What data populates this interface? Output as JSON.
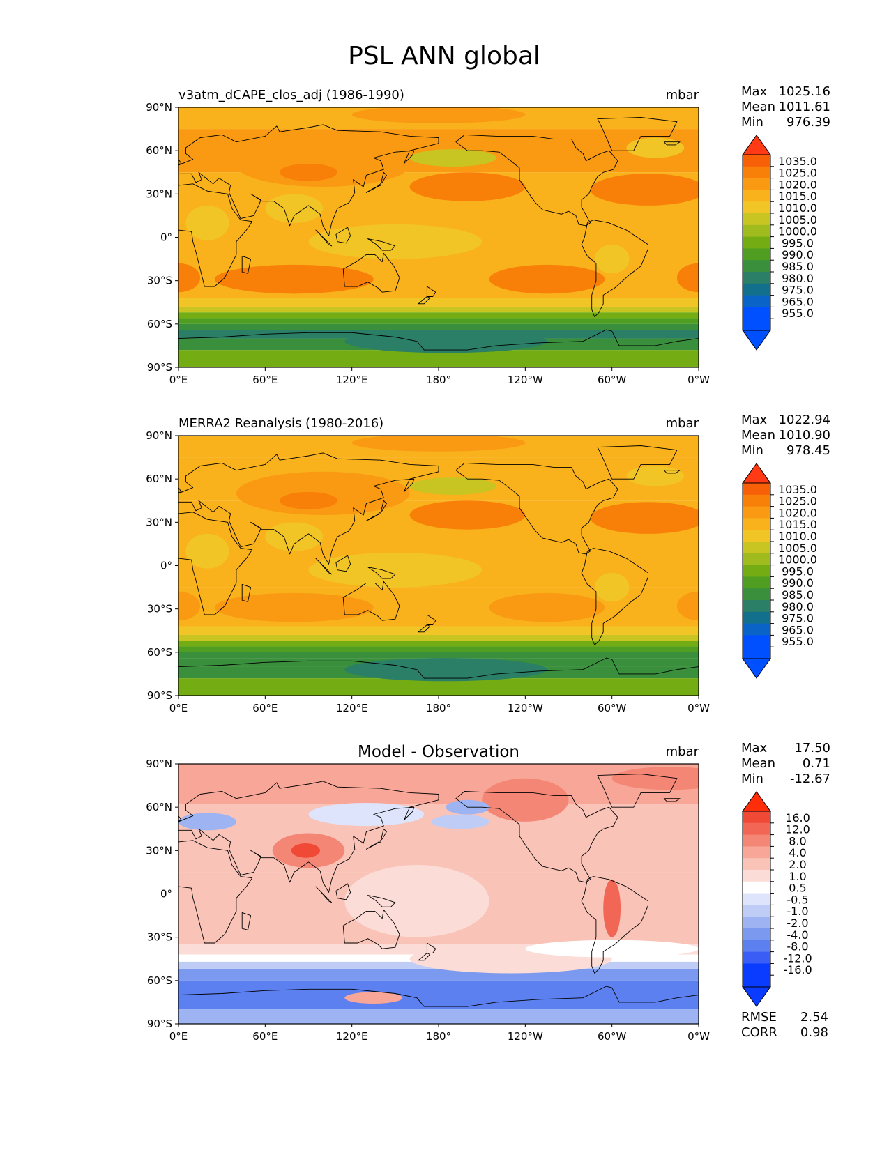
{
  "figure": {
    "title": "PSL ANN global"
  },
  "chart_data": [
    {
      "type": "heatmap",
      "panel": "test",
      "title": "v3atm_dCAPE_clos_adj (1986-1990)",
      "units": "mbar",
      "stats": [
        {
          "label": "Max",
          "value": "1025.16"
        },
        {
          "label": "Mean",
          "value": "1011.61"
        },
        {
          "label": "Min",
          "value": "976.39"
        }
      ],
      "colorbar": {
        "levels": [
          "955.0",
          "965.0",
          "975.0",
          "980.0",
          "985.0",
          "990.0",
          "995.0",
          "1000.0",
          "1005.0",
          "1010.0",
          "1015.0",
          "1020.0",
          "1025.0",
          "1035.0"
        ],
        "colors": [
          "#0050ff",
          "#0a64c8",
          "#13708c",
          "#2a7f66",
          "#3a8f3c",
          "#4f9e22",
          "#74ac14",
          "#a0bb1e",
          "#c8c522",
          "#f2c526",
          "#f9b11c",
          "#f99a12",
          "#f88008",
          "#f86008",
          "#ff3a14"
        ]
      },
      "x_ticks": [
        "0°E",
        "60°E",
        "120°E",
        "180°",
        "120°W",
        "60°W",
        "0°W"
      ],
      "y_ticks": [
        "90°N",
        "60°N",
        "30°N",
        "0°",
        "30°S",
        "60°S",
        "90°S"
      ]
    },
    {
      "type": "heatmap",
      "panel": "reference",
      "title": "MERRA2 Reanalysis (1980-2016)",
      "units": "mbar",
      "stats": [
        {
          "label": "Max",
          "value": "1022.94"
        },
        {
          "label": "Mean",
          "value": "1010.90"
        },
        {
          "label": "Min",
          "value": "978.45"
        }
      ],
      "colorbar": {
        "levels": [
          "955.0",
          "965.0",
          "975.0",
          "980.0",
          "985.0",
          "990.0",
          "995.0",
          "1000.0",
          "1005.0",
          "1010.0",
          "1015.0",
          "1020.0",
          "1025.0",
          "1035.0"
        ],
        "colors": [
          "#0050ff",
          "#0a64c8",
          "#13708c",
          "#2a7f66",
          "#3a8f3c",
          "#4f9e22",
          "#74ac14",
          "#a0bb1e",
          "#c8c522",
          "#f2c526",
          "#f9b11c",
          "#f99a12",
          "#f88008",
          "#f86008",
          "#ff3a14"
        ]
      },
      "x_ticks": [
        "0°E",
        "60°E",
        "120°E",
        "180°",
        "120°W",
        "60°W",
        "0°W"
      ],
      "y_ticks": [
        "90°N",
        "60°N",
        "30°N",
        "0°",
        "30°S",
        "60°S",
        "90°S"
      ]
    },
    {
      "type": "heatmap",
      "panel": "difference",
      "title": "Model - Observation",
      "units": "mbar",
      "stats": [
        {
          "label": "Max",
          "value": "17.50"
        },
        {
          "label": "Mean",
          "value": "0.71"
        },
        {
          "label": "Min",
          "value": "-12.67"
        }
      ],
      "metrics": [
        {
          "label": "RMSE",
          "value": "2.54"
        },
        {
          "label": "CORR",
          "value": "0.98"
        }
      ],
      "colorbar": {
        "levels": [
          "-16.0",
          "-12.0",
          "-8.0",
          "-4.0",
          "-2.0",
          "-1.0",
          "-0.5",
          "0.5",
          "1.0",
          "2.0",
          "4.0",
          "8.0",
          "12.0",
          "16.0"
        ],
        "colors": [
          "#0a3cff",
          "#3a5ef5",
          "#5c80f0",
          "#7b99ee",
          "#9db3f2",
          "#bfcdf6",
          "#dde4fb",
          "#ffffff",
          "#fbdcd6",
          "#f9c3b8",
          "#f8a697",
          "#f48676",
          "#f26655",
          "#f04a36",
          "#ff2d0a"
        ]
      },
      "x_ticks": [
        "0°E",
        "60°E",
        "120°E",
        "180°",
        "120°W",
        "60°W",
        "0°W"
      ],
      "y_ticks": [
        "90°N",
        "60°N",
        "30°N",
        "0°",
        "30°S",
        "60°S",
        "90°S"
      ]
    }
  ]
}
